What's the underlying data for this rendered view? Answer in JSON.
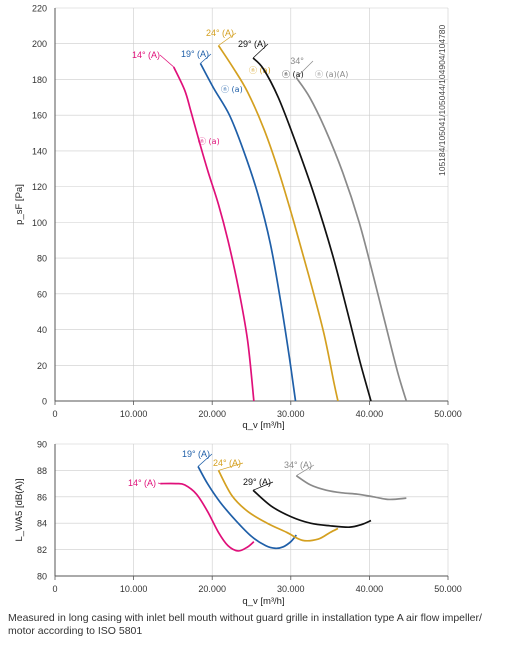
{
  "caption": "Measured in long casing with inlet bell mouth without guard grille in installation type A air flow impeller/ motor according to ISO 5801",
  "reference_code": "105184/105041/105044/104904/104780",
  "colors": {
    "14deg": "#e0107a",
    "19deg": "#1f5fa8",
    "24deg": "#d4a020",
    "29deg": "#111111",
    "34deg": "#8a8a8a",
    "grid": "#cccccc",
    "axis": "#555555"
  },
  "chart_data": [
    {
      "type": "line",
      "title": "",
      "xlabel": "q_v [m³/h]",
      "ylabel": "p_sF [Pa]",
      "xlim": [
        0,
        50000
      ],
      "ylim": [
        0,
        220
      ],
      "x_ticks": [
        "0",
        "10.000",
        "20.000",
        "30.000",
        "40.000",
        "50.000"
      ],
      "y_ticks": [
        "0",
        "20",
        "40",
        "60",
        "80",
        "100",
        "120",
        "140",
        "160",
        "180",
        "200",
        "220"
      ],
      "grid": true,
      "series": [
        {
          "name": "14° (A)",
          "color_key": "14deg",
          "label_text": "14° (A)",
          "marker_text": "ⓝ (a)",
          "x": [
            15100,
            16500,
            17300,
            18500,
            19500,
            20800,
            22000,
            23300,
            24500,
            25300
          ],
          "y": [
            187,
            174,
            162,
            143,
            128,
            110,
            90,
            64,
            34,
            0
          ]
        },
        {
          "name": "19° (A)",
          "color_key": "19deg",
          "label_text": "19° (A)",
          "marker_text": "ⓝ (a)",
          "x": [
            18500,
            20200,
            22200,
            24000,
            25800,
            27400,
            28700,
            29800,
            30600
          ],
          "y": [
            189,
            175,
            160,
            140,
            116,
            88,
            56,
            25,
            0
          ]
        },
        {
          "name": "24° (A)",
          "color_key": "24deg",
          "label_text": "24° (A)",
          "marker_text": "ⓝ (a)",
          "x": [
            20800,
            22600,
            24500,
            26600,
            28500,
            30400,
            32300,
            34200,
            35500,
            36000
          ],
          "y": [
            199,
            187,
            173,
            152,
            128,
            100,
            70,
            38,
            10,
            0
          ]
        },
        {
          "name": "29° (A)",
          "color_key": "29deg",
          "label_text": "29° (A)",
          "marker_text": "ⓝ (a)",
          "x": [
            25200,
            26500,
            28400,
            30600,
            33000,
            35300,
            37200,
            38800,
            40200
          ],
          "y": [
            192,
            186,
            170,
            145,
            115,
            82,
            50,
            22,
            0
          ]
        },
        {
          "name": "34° (A)",
          "color_key": "34deg",
          "label_text": "34°",
          "marker_text": "ⓝ (a)(A)",
          "x": [
            30700,
            32400,
            34400,
            36600,
            38700,
            40500,
            42100,
            43600,
            44700
          ],
          "y": [
            181,
            170,
            152,
            128,
            100,
            70,
            42,
            16,
            0
          ]
        }
      ],
      "annotations": [
        "ⓝ (a)"
      ]
    },
    {
      "type": "line",
      "title": "",
      "xlabel": "q_v [m³/h]",
      "ylabel": "L_WA5 [dB(A)]",
      "xlim": [
        0,
        50000
      ],
      "ylim": [
        80,
        90
      ],
      "x_ticks": [
        "0",
        "10.000",
        "20.000",
        "30.000",
        "40.000",
        "50.000"
      ],
      "y_ticks": [
        "80",
        "82",
        "84",
        "86",
        "88",
        "90"
      ],
      "grid": true,
      "series": [
        {
          "name": "14° (A)",
          "color_key": "14deg",
          "label_text": "14° (A)",
          "x": [
            13400,
            15400,
            16500,
            18000,
            19400,
            20800,
            22000,
            23300,
            24500,
            25300
          ],
          "y": [
            87.0,
            87.0,
            86.9,
            86.2,
            84.9,
            83.3,
            82.3,
            81.9,
            82.2,
            82.6
          ]
        },
        {
          "name": "19° (A)",
          "color_key": "19deg",
          "label_text": "19° (A)",
          "x": [
            18200,
            19400,
            21000,
            23000,
            25000,
            26800,
            28000,
            29000,
            30000,
            30700
          ],
          "y": [
            88.3,
            87.0,
            85.6,
            84.2,
            83.0,
            82.3,
            82.1,
            82.2,
            82.6,
            83.1
          ]
        },
        {
          "name": "24° (A)",
          "color_key": "24deg",
          "label_text": "24° (A)",
          "x": [
            20800,
            22500,
            24500,
            27000,
            29500,
            31500,
            33500,
            35000,
            36000
          ],
          "y": [
            88.0,
            86.1,
            84.9,
            84.0,
            83.3,
            82.7,
            82.8,
            83.3,
            83.6
          ]
        },
        {
          "name": "29° (A)",
          "color_key": "29deg",
          "label_text": "29° (A)",
          "x": [
            25200,
            27500,
            30000,
            32500,
            35000,
            37500,
            39000,
            40200
          ],
          "y": [
            86.5,
            85.3,
            84.5,
            84.0,
            83.8,
            83.7,
            83.9,
            84.2
          ]
        },
        {
          "name": "34° (A)",
          "color_key": "34deg",
          "label_text": "34° (A)",
          "x": [
            30700,
            32500,
            34500,
            36500,
            38500,
            40500,
            42500,
            44700
          ],
          "y": [
            87.6,
            86.9,
            86.5,
            86.3,
            86.2,
            86.0,
            85.8,
            85.9
          ]
        }
      ]
    }
  ]
}
